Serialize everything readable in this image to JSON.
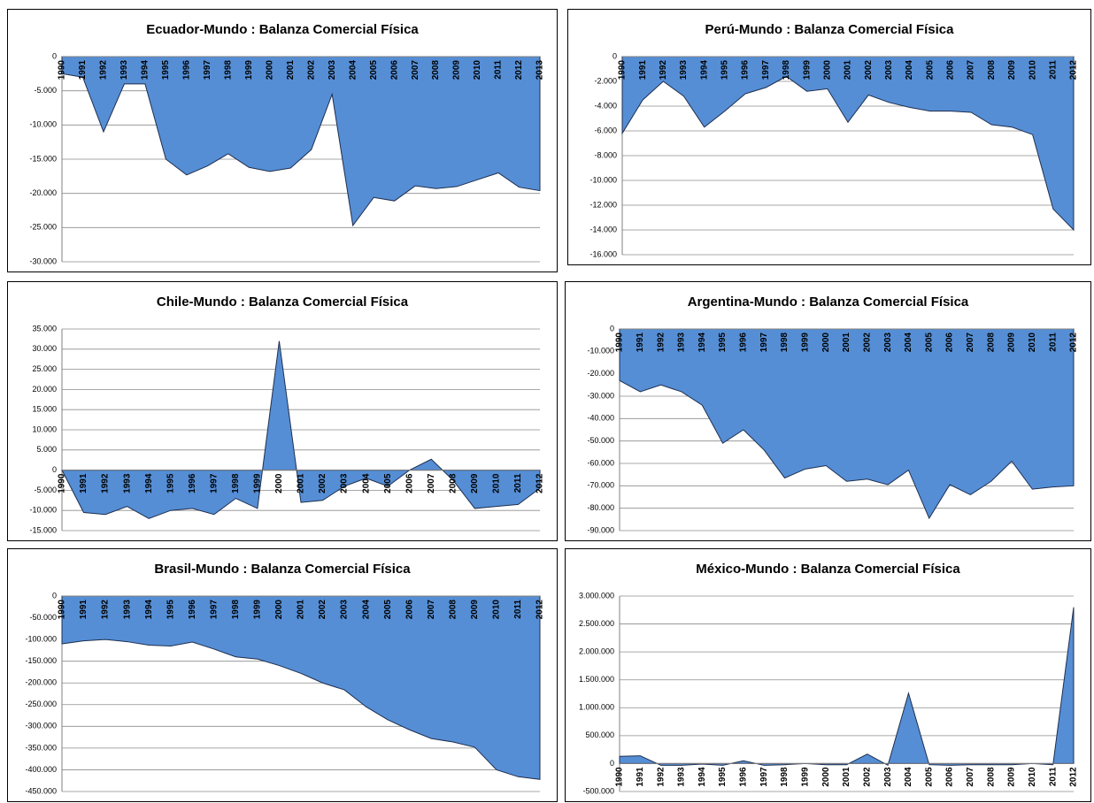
{
  "chart_data": [
    {
      "type": "area",
      "title": "Ecuador-Mundo  : Balanza Comercial Física",
      "color": "#558ed5",
      "grid": true,
      "categories": [
        "1990",
        "1991",
        "1992",
        "1993",
        "1994",
        "1995",
        "1996",
        "1997",
        "1998",
        "1999",
        "2000",
        "2001",
        "2002",
        "2003",
        "2004",
        "2005",
        "2006",
        "2007",
        "2008",
        "2009",
        "2010",
        "2011",
        "2012",
        "2013"
      ],
      "values": [
        -2500,
        -3000,
        -11000,
        -4000,
        -4000,
        -15000,
        -17300,
        -16000,
        -14200,
        -16200,
        -16800,
        -16300,
        -13600,
        -5500,
        -24700,
        -20600,
        -21100,
        -18900,
        -19300,
        -19000,
        -18000,
        -17000,
        -19100,
        -19600
      ],
      "ylim": [
        -30000,
        0
      ],
      "yticks": [
        0,
        {
          "value": -5000,
          "label": "-5.000"
        },
        {
          "value": -10000,
          "label": "-10.000"
        },
        {
          "value": -15000,
          "label": "-15.000"
        },
        {
          "value": -20000,
          "label": "-20.000"
        },
        {
          "value": -25000,
          "label": "-25.000"
        },
        {
          "value": -30000,
          "label": "-30.000"
        }
      ]
    },
    {
      "type": "area",
      "title": "Perú-Mundo  : Balanza Comercial Física",
      "color": "#558ed5",
      "grid": true,
      "categories": [
        "1990",
        "1991",
        "1992",
        "1993",
        "1994",
        "1995",
        "1996",
        "1997",
        "1998",
        "1999",
        "2000",
        "2001",
        "2002",
        "2003",
        "2004",
        "2005",
        "2006",
        "2007",
        "2008",
        "2009",
        "2010",
        "2011",
        "2012"
      ],
      "values": [
        -6200,
        -3500,
        -2000,
        -3200,
        -5700,
        -4400,
        -3000,
        -2500,
        -1600,
        -2800,
        -2600,
        -5300,
        -3100,
        -3700,
        -4100,
        -4400,
        -4400,
        -4500,
        -5500,
        -5700,
        -6300,
        -12300,
        -14000
      ],
      "ylim": [
        -16000,
        0
      ],
      "yticks": [
        0,
        {
          "value": -2000,
          "label": "-2.000"
        },
        {
          "value": -4000,
          "label": "-4.000"
        },
        {
          "value": -6000,
          "label": "-6.000"
        },
        {
          "value": -8000,
          "label": "-8.000"
        },
        {
          "value": -10000,
          "label": "-10.000"
        },
        {
          "value": -12000,
          "label": "-12.000"
        },
        {
          "value": -14000,
          "label": "-14.000"
        },
        {
          "value": -16000,
          "label": "-16.000"
        }
      ]
    },
    {
      "type": "area",
      "title": "Chile-Mundo  : Balanza Comercial Física",
      "color": "#558ed5",
      "grid": true,
      "categories": [
        "1990",
        "1991",
        "1992",
        "1993",
        "1994",
        "1995",
        "1996",
        "1997",
        "1998",
        "1999",
        "2000",
        "2001",
        "2002",
        "2003",
        "2004",
        "2005",
        "2006",
        "2007",
        "2008",
        "2009",
        "2010",
        "2011",
        "2012"
      ],
      "values": [
        0,
        -10500,
        -11000,
        -9000,
        -12000,
        -10000,
        -9500,
        -11000,
        -7000,
        -9500,
        32000,
        -8000,
        -7500,
        -4000,
        -2000,
        -4000,
        0,
        2700,
        -2500,
        -9500,
        -9000,
        -8500,
        -4500
      ],
      "ylim": [
        -15000,
        35000
      ],
      "yticks": [
        {
          "value": 35000,
          "label": "35.000"
        },
        {
          "value": 30000,
          "label": "30.000"
        },
        {
          "value": 25000,
          "label": "25.000"
        },
        {
          "value": 20000,
          "label": "20.000"
        },
        {
          "value": 15000,
          "label": "15.000"
        },
        {
          "value": 10000,
          "label": "10.000"
        },
        {
          "value": 5000,
          "label": "5.000"
        },
        0,
        {
          "value": -5000,
          "label": "-5.000"
        },
        {
          "value": -10000,
          "label": "-10.000"
        },
        {
          "value": -15000,
          "label": "-15.000"
        }
      ]
    },
    {
      "type": "area",
      "title": "Argentina-Mundo  : Balanza Comercial Física",
      "color": "#558ed5",
      "grid": true,
      "categories": [
        "1990",
        "1991",
        "1992",
        "1993",
        "1994",
        "1995",
        "1996",
        "1997",
        "1998",
        "1999",
        "2000",
        "2001",
        "2002",
        "2003",
        "2004",
        "2005",
        "2006",
        "2007",
        "2008",
        "2009",
        "2010",
        "2011",
        "2012"
      ],
      "values": [
        -23000,
        -28000,
        -25000,
        -28000,
        -34000,
        -51000,
        -45000,
        -54000,
        -66500,
        -62500,
        -61000,
        -68000,
        -67000,
        -69500,
        -63000,
        -84500,
        -69500,
        -74000,
        -68000,
        -59000,
        -71500,
        -70500,
        -70000
      ],
      "ylim": [
        -90000,
        0
      ],
      "yticks": [
        0,
        {
          "value": -10000,
          "label": "-10.000"
        },
        {
          "value": -20000,
          "label": "-20.000"
        },
        {
          "value": -30000,
          "label": "-30.000"
        },
        {
          "value": -40000,
          "label": "-40.000"
        },
        {
          "value": -50000,
          "label": "-50.000"
        },
        {
          "value": -60000,
          "label": "-60.000"
        },
        {
          "value": -70000,
          "label": "-70.000"
        },
        {
          "value": -80000,
          "label": "-80.000"
        },
        {
          "value": -90000,
          "label": "-90.000"
        }
      ]
    },
    {
      "type": "area",
      "title": "Brasil-Mundo  : Balanza Comercial Física",
      "color": "#558ed5",
      "grid": true,
      "categories": [
        "1990",
        "1991",
        "1992",
        "1993",
        "1994",
        "1995",
        "1996",
        "1997",
        "1998",
        "1999",
        "2000",
        "2001",
        "2002",
        "2003",
        "2004",
        "2005",
        "2006",
        "2007",
        "2008",
        "2009",
        "2010",
        "2011",
        "2012"
      ],
      "values": [
        -110000,
        -103000,
        -100000,
        -105000,
        -113000,
        -115000,
        -106000,
        -122000,
        -140000,
        -145000,
        -160000,
        -178000,
        -200000,
        -216000,
        -255000,
        -285000,
        -308000,
        -328000,
        -336000,
        -348000,
        -400000,
        -416000,
        -422000
      ],
      "ylim": [
        -450000,
        0
      ],
      "yticks": [
        0,
        {
          "value": -50000,
          "label": "-50.000"
        },
        {
          "value": -100000,
          "label": "-100.000"
        },
        {
          "value": -150000,
          "label": "-150.000"
        },
        {
          "value": -200000,
          "label": "-200.000"
        },
        {
          "value": -250000,
          "label": "-250.000"
        },
        {
          "value": -300000,
          "label": "-300.000"
        },
        {
          "value": -350000,
          "label": "-350.000"
        },
        {
          "value": -400000,
          "label": "-400.000"
        },
        {
          "value": -450000,
          "label": "-450.000"
        }
      ]
    },
    {
      "type": "area",
      "title": "México-Mundo  : Balanza Comercial Física",
      "color": "#558ed5",
      "grid": true,
      "categories": [
        "1990",
        "1991",
        "1992",
        "1993",
        "1994",
        "1995",
        "1996",
        "1997",
        "1998",
        "1999",
        "2000",
        "2001",
        "2002",
        "2003",
        "2004",
        "2005",
        "2006",
        "2007",
        "2008",
        "2009",
        "2010",
        "2011",
        "2012"
      ],
      "values": [
        130000,
        140000,
        -30000,
        -30000,
        -10000,
        -30000,
        50000,
        -30000,
        -20000,
        0,
        -20000,
        -20000,
        170000,
        -30000,
        1260000,
        -20000,
        -30000,
        -20000,
        -20000,
        -20000,
        0,
        -20000,
        2800000
      ],
      "ylim": [
        -500000,
        3000000
      ],
      "yticks": [
        {
          "value": 3000000,
          "label": "3.000.000"
        },
        {
          "value": 2500000,
          "label": "2.500.000"
        },
        {
          "value": 2000000,
          "label": "2.000.000"
        },
        {
          "value": 1500000,
          "label": "1.500.000"
        },
        {
          "value": 1000000,
          "label": "1.000.000"
        },
        {
          "value": 500000,
          "label": "500.000"
        },
        0,
        {
          "value": -500000,
          "label": "-500.000"
        }
      ]
    }
  ]
}
